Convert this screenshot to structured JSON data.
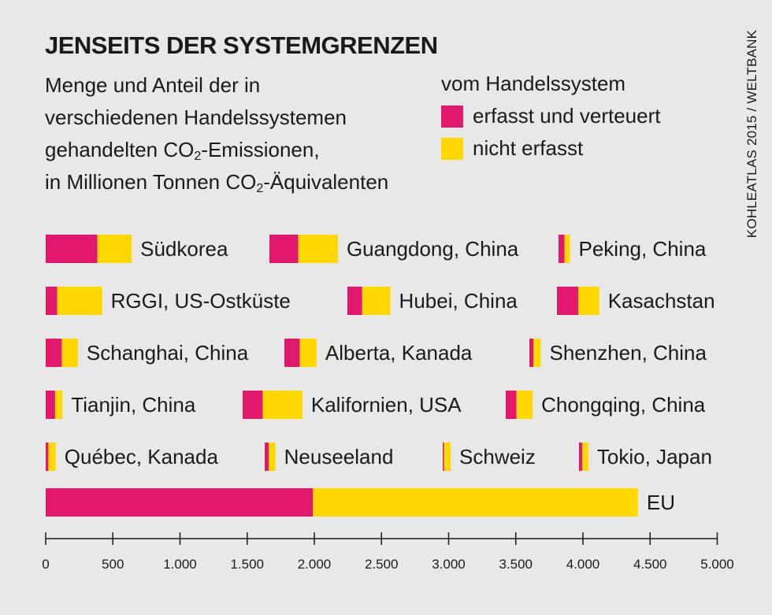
{
  "title": "JENSEITS DER SYSTEMGRENZEN",
  "subtitle": {
    "line1": "Menge und Anteil der in",
    "line2": "verschiedenen Handelssystemen",
    "line3a": "gehandelten CO",
    "line3sub": "2",
    "line3b": "-Emissionen,",
    "line4a": "in Millionen Tonnen CO",
    "line4sub": "2",
    "line4b": "-Äquivalenten"
  },
  "legend": {
    "heading": "vom Handelssystem",
    "items": [
      {
        "label": "erfasst und verteuert",
        "color": "#e2186e"
      },
      {
        "label": "nicht erfasst",
        "color": "#ffd800"
      }
    ]
  },
  "source": "KOHLEATLAS 2015 / WELTBANK",
  "chart_data": {
    "type": "bar",
    "orientation": "horizontal",
    "stacked": true,
    "series": [
      {
        "name": "erfasst und verteuert",
        "color": "#e2186e"
      },
      {
        "name": "nicht erfasst",
        "color": "#ffd800"
      }
    ],
    "rows": [
      {
        "items": [
          {
            "name": "Südkorea",
            "values": [
              385,
              255
            ]
          },
          {
            "name": "Guangdong, China",
            "values": [
              215,
              295
            ]
          },
          {
            "name": "Peking, China",
            "values": [
              45,
              40
            ]
          }
        ]
      },
      {
        "items": [
          {
            "name": "RGGI, US-Ostküste",
            "values": [
              85,
              335
            ]
          },
          {
            "name": "Hubei, China",
            "values": [
              110,
              210
            ]
          },
          {
            "name": "Kasachstan",
            "values": [
              160,
              155
            ]
          }
        ]
      },
      {
        "items": [
          {
            "name": "Schanghai, China",
            "values": [
              120,
              120
            ]
          },
          {
            "name": "Alberta, Kanada",
            "values": [
              115,
              125
            ]
          },
          {
            "name": "Shenzhen, China",
            "values": [
              30,
              55
            ]
          }
        ]
      },
      {
        "items": [
          {
            "name": "Tianjin, China",
            "values": [
              70,
              55
            ]
          },
          {
            "name": "Kalifornien, USA",
            "values": [
              150,
              295
            ]
          },
          {
            "name": "Chongqing, China",
            "values": [
              80,
              120
            ]
          }
        ]
      },
      {
        "items": [
          {
            "name": "Québec, Kanada",
            "values": [
              20,
              55
            ]
          },
          {
            "name": "Neuseeland",
            "values": [
              30,
              50
            ]
          },
          {
            "name": "Schweiz",
            "values": [
              5,
              50
            ]
          },
          {
            "name": "Tokio, Japan",
            "values": [
              25,
              45
            ]
          }
        ]
      },
      {
        "items": [
          {
            "name": "EU",
            "values": [
              1990,
              2420
            ]
          }
        ]
      }
    ],
    "xaxis": {
      "min": 0,
      "max": 5000,
      "ticks": [
        0,
        500,
        1000,
        1500,
        2000,
        2500,
        3000,
        3500,
        4000,
        4500,
        5000
      ],
      "tick_labels": [
        "0",
        "500",
        "1.000",
        "1.500",
        "2.000",
        "2.500",
        "3.000",
        "3.500",
        "4.000",
        "4.500",
        "5.000"
      ]
    },
    "grid": false,
    "legend_position": "top-right"
  }
}
